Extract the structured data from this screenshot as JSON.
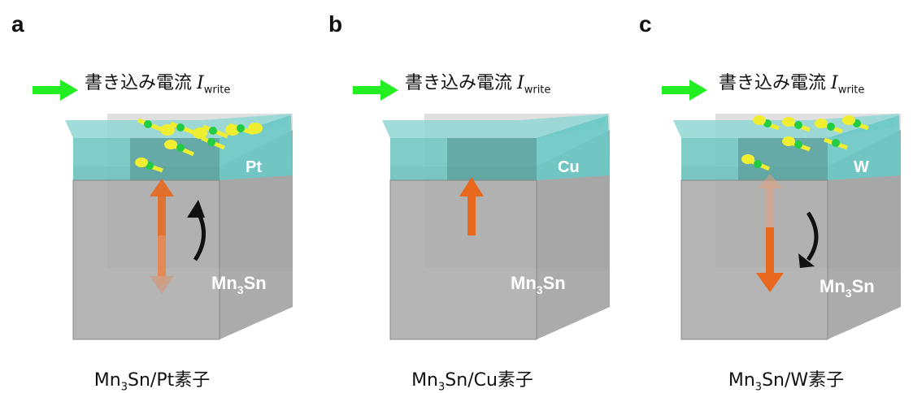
{
  "panels": [
    {
      "letter": "a",
      "current_text": "書き込み電流",
      "current_symbol": "I",
      "current_subscript": "write",
      "top_layer": "Pt",
      "bottom_layer_base": "Mn",
      "bottom_layer_sub": "3",
      "bottom_layer_tail": "Sn",
      "caption_base": "Mn",
      "caption_sub": "3",
      "caption_tail": "Sn/Pt素子",
      "magnetization": "switching-both",
      "switch_arrow": "up-curl"
    },
    {
      "letter": "b",
      "current_text": "書き込み電流",
      "current_symbol": "I",
      "current_subscript": "write",
      "top_layer": "Cu",
      "bottom_layer_base": "Mn",
      "bottom_layer_sub": "3",
      "bottom_layer_tail": "Sn",
      "caption_base": "Mn",
      "caption_sub": "3",
      "caption_tail": "Sn/Cu素子",
      "magnetization": "up",
      "switch_arrow": "none"
    },
    {
      "letter": "c",
      "current_text": "書き込み電流",
      "current_symbol": "I",
      "current_subscript": "write",
      "top_layer": "W",
      "bottom_layer_base": "Mn",
      "bottom_layer_sub": "3",
      "bottom_layer_tail": "Sn",
      "caption_base": "Mn",
      "caption_sub": "3",
      "caption_tail": "Sn/W素子",
      "magnetization": "switching-down",
      "switch_arrow": "down-curl"
    }
  ],
  "colors": {
    "current_arrow": "#22ee22",
    "top_layer": "#7fd3d0",
    "bottom_layer": "#a9a9a9",
    "magnetization_arrow": "#e8681e",
    "spin_ball": "#f0ee30",
    "spin_axis": "#22cc44"
  }
}
